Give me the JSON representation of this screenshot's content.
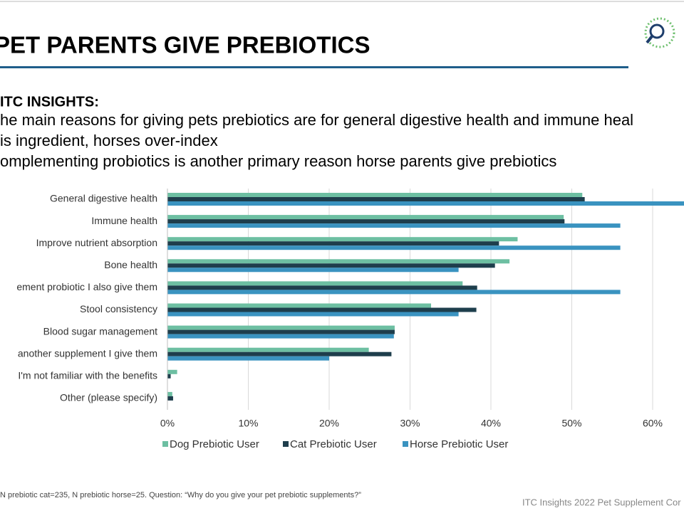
{
  "slide": {
    "title": "PET PARENTS GIVE PREBIOTICS",
    "insights_heading": "ITC INSIGHTS:",
    "insights_lines": [
      "he main reasons for giving pets prebiotics are for general digestive health and immune heal",
      "is ingredient, horses over-index",
      "omplementing probiotics is another primary reason horse parents give prebiotics"
    ],
    "footnote": "N prebiotic cat=235, N prebiotic horse=25. Question: “Why do you give your pet prebiotic supplements?”",
    "footer": "ITC Insights 2022 Pet Supplement Cor"
  },
  "chart_data": {
    "type": "bar",
    "orientation": "horizontal",
    "categories": [
      "General digestive health",
      "Immune health",
      "Improve nutrient absorption",
      "Bone health",
      "ement probiotic I also give them",
      "Stool consistency",
      "Blood sugar management",
      "another supplement I give them",
      "I'm not familiar with the benefits",
      "Other (please specify)"
    ],
    "series": [
      {
        "name": "Dog Prebiotic User",
        "color": "#6dbfa2",
        "values": [
          51.3,
          49,
          43.3,
          42.3,
          36.5,
          32.6,
          28.1,
          24.9,
          1.2,
          0.6
        ]
      },
      {
        "name": "Cat Prebiotic User",
        "color": "#1e3e4c",
        "values": [
          51.6,
          49.1,
          41,
          40.5,
          38.3,
          38.2,
          28.1,
          27.7,
          0.4,
          0.7
        ]
      },
      {
        "name": "Horse Prebiotic User",
        "color": "#3a93c0",
        "values": [
          64,
          56,
          56,
          36,
          56,
          36,
          28,
          20,
          0,
          0
        ]
      }
    ],
    "xlim": [
      0,
      70
    ],
    "xticks": [
      {
        "value": 0,
        "label": "0%"
      },
      {
        "value": 10,
        "label": "10%"
      },
      {
        "value": 20,
        "label": "20%"
      },
      {
        "value": 30,
        "label": "30%"
      },
      {
        "value": 40,
        "label": "40%"
      },
      {
        "value": 50,
        "label": "50%"
      },
      {
        "value": 60,
        "label": "60%"
      }
    ],
    "legend": "bottom"
  }
}
